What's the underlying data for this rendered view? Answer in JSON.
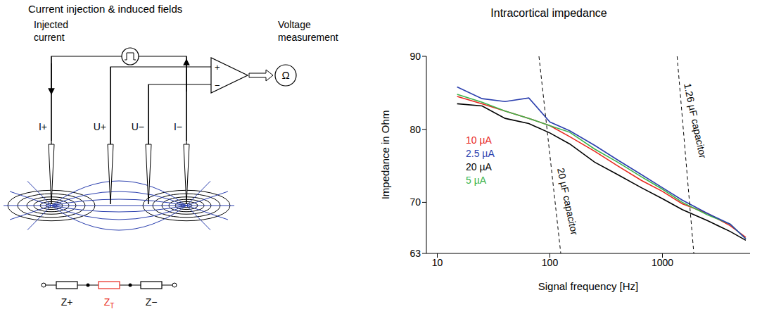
{
  "diagram": {
    "title": "Current injection & induced fields",
    "source_label": "Injected current",
    "meter_label": "Voltage measurement",
    "meter_output": "Ω",
    "amplifier_inputs": [
      "+",
      "−"
    ],
    "electrodes": [
      "I+",
      "U+",
      "U−",
      "I−"
    ],
    "impedances": [
      {
        "label": "Z+"
      },
      {
        "label": "Z",
        "subscript": "T",
        "color": "#e8281e"
      },
      {
        "label": "Z−"
      }
    ]
  },
  "chart_data": {
    "type": "line",
    "title": "Intracortical impedance",
    "x_label": "Signal frequency [Hz]",
    "y_label": "Impedance in Ohm",
    "log": "x",
    "grid": false,
    "legend": "left",
    "xlim": [
      8,
      6000
    ],
    "xticks": [
      10,
      100,
      1000
    ],
    "ylim": [
      63,
      90
    ],
    "yticks": [
      63,
      70,
      80,
      90
    ],
    "x": [
      15,
      25,
      40,
      65,
      100,
      150,
      250,
      400,
      650,
      1000,
      1500,
      2500,
      4000,
      5500
    ],
    "series": [
      {
        "name": "20 µA",
        "color": "#000000",
        "values": [
          83.5,
          83.2,
          81.5,
          80.8,
          79.5,
          78,
          75.5,
          73.8,
          72,
          70.5,
          69,
          67.5,
          66,
          64.8
        ]
      },
      {
        "name": "10 µA",
        "color": "#e8281e",
        "values": [
          84.5,
          83.5,
          82.5,
          81.5,
          80.5,
          79,
          77,
          75,
          73,
          71.5,
          69.8,
          68.5,
          66.8,
          65.2
        ]
      },
      {
        "name": "5 µA",
        "color": "#3cb44b",
        "values": [
          84.8,
          83.7,
          82.5,
          81.5,
          80.5,
          79.6,
          77.3,
          75.5,
          73.5,
          71.8,
          70,
          68.3,
          67,
          65
        ]
      },
      {
        "name": "2.5 µA",
        "color": "#2b3fae",
        "values": [
          85.8,
          84.2,
          83.8,
          84.3,
          81,
          79.8,
          77.8,
          75.8,
          73.8,
          72,
          70.3,
          68.5,
          67,
          65
        ]
      }
    ],
    "annotations": [
      {
        "text": "20 µF capacitor",
        "x": [
          80,
          125
        ],
        "y": [
          90,
          63
        ],
        "line_style": "dashed"
      },
      {
        "text": "1.26 µF capacitor",
        "x": [
          1350,
          1900
        ],
        "y": [
          90,
          63
        ],
        "line_style": "dashed"
      }
    ]
  }
}
